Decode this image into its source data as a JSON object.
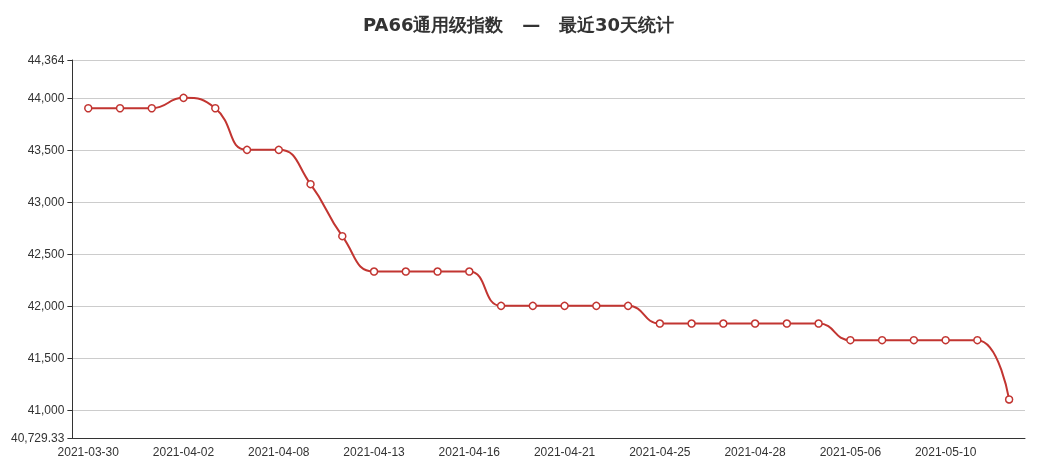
{
  "chart_data": {
    "type": "line",
    "title": "PA66通用级指数   —   最近30天统计",
    "categories": [
      "2021-03-30",
      null,
      null,
      "2021-04-02",
      null,
      null,
      "2021-04-08",
      null,
      null,
      "2021-04-13",
      null,
      null,
      "2021-04-16",
      null,
      null,
      "2021-04-21",
      null,
      null,
      "2021-04-25",
      null,
      null,
      "2021-04-28",
      null,
      null,
      "2021-05-06",
      null,
      null,
      "2021-05-10",
      null,
      null
    ],
    "series": [
      {
        "color": "#c23531",
        "values": [
          43900,
          43900,
          43900,
          44000,
          43900,
          43500,
          43500,
          43170,
          42670,
          42330,
          42330,
          42330,
          42330,
          42000,
          42000,
          42000,
          42000,
          42000,
          41830,
          41830,
          41830,
          41830,
          41830,
          41830,
          41670,
          41670,
          41670,
          41670,
          41670,
          41100
        ]
      }
    ],
    "ylim": [
      40729.33,
      44364
    ],
    "yticks": [
      {
        "value": 40729.33,
        "label": "40,729.33"
      },
      {
        "value": 41000,
        "label": "41,000"
      },
      {
        "value": 41500,
        "label": "41,500"
      },
      {
        "value": 42000,
        "label": "42,000"
      },
      {
        "value": 42500,
        "label": "42,500"
      },
      {
        "value": 43000,
        "label": "43,000"
      },
      {
        "value": 43500,
        "label": "43,500"
      },
      {
        "value": 44000,
        "label": "44,000"
      },
      {
        "value": 44364,
        "label": "44,364"
      }
    ],
    "grid": "y",
    "marker": "circle",
    "line_style": "solid"
  }
}
